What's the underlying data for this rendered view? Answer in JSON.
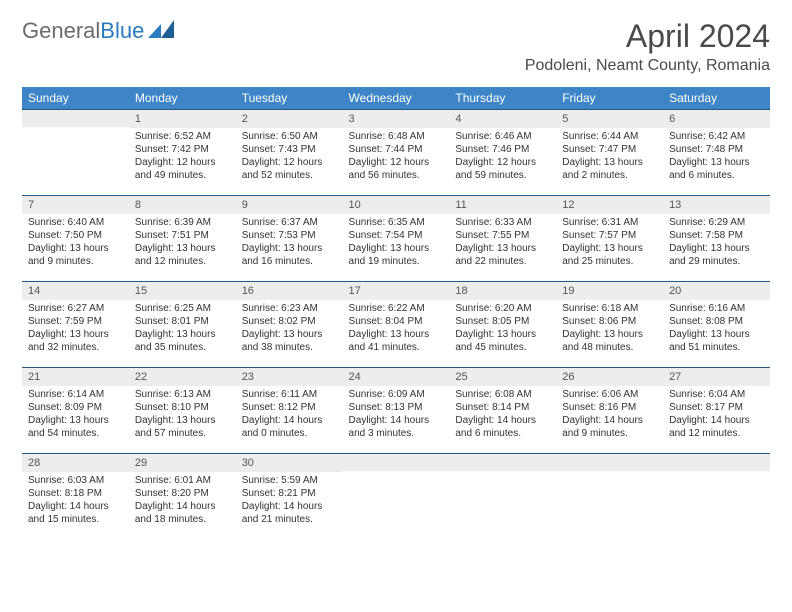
{
  "logo": {
    "text_gray": "General",
    "text_blue": "Blue"
  },
  "title": "April 2024",
  "location": "Podoleni, Neamt County, Romania",
  "colors": {
    "header_bg": "#3d85c6",
    "header_text": "#ffffff",
    "daynum_bg": "#ededed",
    "border_top": "#2a5885",
    "logo_gray": "#6b6b6b",
    "logo_blue": "#2a7bbf"
  },
  "weekdays": [
    "Sunday",
    "Monday",
    "Tuesday",
    "Wednesday",
    "Thursday",
    "Friday",
    "Saturday"
  ],
  "days": [
    {
      "n": 1,
      "sr": "6:52 AM",
      "ss": "7:42 PM",
      "dl": "12 hours and 49 minutes."
    },
    {
      "n": 2,
      "sr": "6:50 AM",
      "ss": "7:43 PM",
      "dl": "12 hours and 52 minutes."
    },
    {
      "n": 3,
      "sr": "6:48 AM",
      "ss": "7:44 PM",
      "dl": "12 hours and 56 minutes."
    },
    {
      "n": 4,
      "sr": "6:46 AM",
      "ss": "7:46 PM",
      "dl": "12 hours and 59 minutes."
    },
    {
      "n": 5,
      "sr": "6:44 AM",
      "ss": "7:47 PM",
      "dl": "13 hours and 2 minutes."
    },
    {
      "n": 6,
      "sr": "6:42 AM",
      "ss": "7:48 PM",
      "dl": "13 hours and 6 minutes."
    },
    {
      "n": 7,
      "sr": "6:40 AM",
      "ss": "7:50 PM",
      "dl": "13 hours and 9 minutes."
    },
    {
      "n": 8,
      "sr": "6:39 AM",
      "ss": "7:51 PM",
      "dl": "13 hours and 12 minutes."
    },
    {
      "n": 9,
      "sr": "6:37 AM",
      "ss": "7:53 PM",
      "dl": "13 hours and 16 minutes."
    },
    {
      "n": 10,
      "sr": "6:35 AM",
      "ss": "7:54 PM",
      "dl": "13 hours and 19 minutes."
    },
    {
      "n": 11,
      "sr": "6:33 AM",
      "ss": "7:55 PM",
      "dl": "13 hours and 22 minutes."
    },
    {
      "n": 12,
      "sr": "6:31 AM",
      "ss": "7:57 PM",
      "dl": "13 hours and 25 minutes."
    },
    {
      "n": 13,
      "sr": "6:29 AM",
      "ss": "7:58 PM",
      "dl": "13 hours and 29 minutes."
    },
    {
      "n": 14,
      "sr": "6:27 AM",
      "ss": "7:59 PM",
      "dl": "13 hours and 32 minutes."
    },
    {
      "n": 15,
      "sr": "6:25 AM",
      "ss": "8:01 PM",
      "dl": "13 hours and 35 minutes."
    },
    {
      "n": 16,
      "sr": "6:23 AM",
      "ss": "8:02 PM",
      "dl": "13 hours and 38 minutes."
    },
    {
      "n": 17,
      "sr": "6:22 AM",
      "ss": "8:04 PM",
      "dl": "13 hours and 41 minutes."
    },
    {
      "n": 18,
      "sr": "6:20 AM",
      "ss": "8:05 PM",
      "dl": "13 hours and 45 minutes."
    },
    {
      "n": 19,
      "sr": "6:18 AM",
      "ss": "8:06 PM",
      "dl": "13 hours and 48 minutes."
    },
    {
      "n": 20,
      "sr": "6:16 AM",
      "ss": "8:08 PM",
      "dl": "13 hours and 51 minutes."
    },
    {
      "n": 21,
      "sr": "6:14 AM",
      "ss": "8:09 PM",
      "dl": "13 hours and 54 minutes."
    },
    {
      "n": 22,
      "sr": "6:13 AM",
      "ss": "8:10 PM",
      "dl": "13 hours and 57 minutes."
    },
    {
      "n": 23,
      "sr": "6:11 AM",
      "ss": "8:12 PM",
      "dl": "14 hours and 0 minutes."
    },
    {
      "n": 24,
      "sr": "6:09 AM",
      "ss": "8:13 PM",
      "dl": "14 hours and 3 minutes."
    },
    {
      "n": 25,
      "sr": "6:08 AM",
      "ss": "8:14 PM",
      "dl": "14 hours and 6 minutes."
    },
    {
      "n": 26,
      "sr": "6:06 AM",
      "ss": "8:16 PM",
      "dl": "14 hours and 9 minutes."
    },
    {
      "n": 27,
      "sr": "6:04 AM",
      "ss": "8:17 PM",
      "dl": "14 hours and 12 minutes."
    },
    {
      "n": 28,
      "sr": "6:03 AM",
      "ss": "8:18 PM",
      "dl": "14 hours and 15 minutes."
    },
    {
      "n": 29,
      "sr": "6:01 AM",
      "ss": "8:20 PM",
      "dl": "14 hours and 18 minutes."
    },
    {
      "n": 30,
      "sr": "5:59 AM",
      "ss": "8:21 PM",
      "dl": "14 hours and 21 minutes."
    }
  ],
  "labels": {
    "sunrise": "Sunrise:",
    "sunset": "Sunset:",
    "daylight": "Daylight:"
  },
  "start_weekday": 1
}
